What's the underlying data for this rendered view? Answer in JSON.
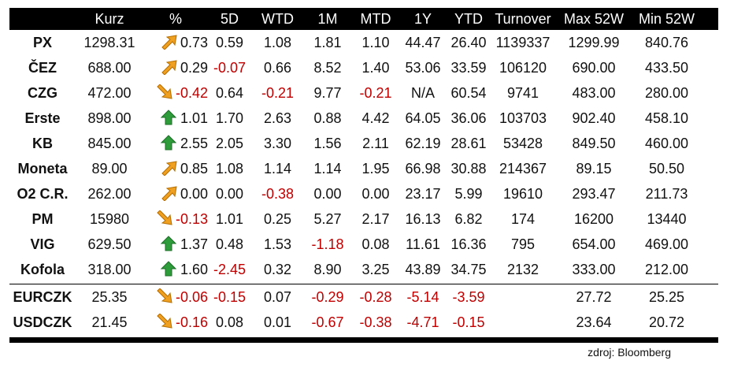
{
  "columns": [
    "",
    "Kurz",
    "%",
    "5D",
    "WTD",
    "1M",
    "MTD",
    "1Y",
    "YTD",
    "Turnover",
    "Max 52W",
    "Min 52W"
  ],
  "stocks": [
    {
      "name": "PX",
      "kurz": "1298.31",
      "pct": "0.73",
      "trend": "up-right",
      "d5": "0.59",
      "wtd": "1.08",
      "m1": "1.81",
      "mtd": "1.10",
      "y1": "44.47",
      "ytd": "26.40",
      "turnover": "1139337",
      "max52": "1299.99",
      "min52": "840.76"
    },
    {
      "name": "ČEZ",
      "kurz": "688.00",
      "pct": "0.29",
      "trend": "up-right",
      "d5": "-0.07",
      "wtd": "0.66",
      "m1": "8.52",
      "mtd": "1.40",
      "y1": "53.06",
      "ytd": "33.59",
      "turnover": "106120",
      "max52": "690.00",
      "min52": "433.50"
    },
    {
      "name": "CZG",
      "kurz": "472.00",
      "pct": "-0.42",
      "trend": "down-right",
      "d5": "0.64",
      "wtd": "-0.21",
      "m1": "9.77",
      "mtd": "-0.21",
      "y1": "N/A",
      "ytd": "60.54",
      "turnover": "9741",
      "max52": "483.00",
      "min52": "280.00"
    },
    {
      "name": "Erste",
      "kurz": "898.00",
      "pct": "1.01",
      "trend": "up",
      "d5": "1.70",
      "wtd": "2.63",
      "m1": "0.88",
      "mtd": "4.42",
      "y1": "64.05",
      "ytd": "36.06",
      "turnover": "103703",
      "max52": "902.40",
      "min52": "458.10"
    },
    {
      "name": "KB",
      "kurz": "845.00",
      "pct": "2.55",
      "trend": "up",
      "d5": "2.05",
      "wtd": "3.30",
      "m1": "1.56",
      "mtd": "2.11",
      "y1": "62.19",
      "ytd": "28.61",
      "turnover": "53428",
      "max52": "849.50",
      "min52": "460.00"
    },
    {
      "name": "Moneta",
      "kurz": "89.00",
      "pct": "0.85",
      "trend": "up-right",
      "d5": "1.08",
      "wtd": "1.14",
      "m1": "1.14",
      "mtd": "1.95",
      "y1": "66.98",
      "ytd": "30.88",
      "turnover": "214367",
      "max52": "89.15",
      "min52": "50.50"
    },
    {
      "name": "O2 C.R.",
      "kurz": "262.00",
      "pct": "0.00",
      "trend": "up-right",
      "d5": "0.00",
      "wtd": "-0.38",
      "m1": "0.00",
      "mtd": "0.00",
      "y1": "23.17",
      "ytd": "5.99",
      "turnover": "19610",
      "max52": "293.47",
      "min52": "211.73"
    },
    {
      "name": "PM",
      "kurz": "15980",
      "pct": "-0.13",
      "trend": "down-right",
      "d5": "1.01",
      "wtd": "0.25",
      "m1": "5.27",
      "mtd": "2.17",
      "y1": "16.13",
      "ytd": "6.82",
      "turnover": "174",
      "max52": "16200",
      "min52": "13440"
    },
    {
      "name": "VIG",
      "kurz": "629.50",
      "pct": "1.37",
      "trend": "up",
      "d5": "0.48",
      "wtd": "1.53",
      "m1": "-1.18",
      "mtd": "0.08",
      "y1": "11.61",
      "ytd": "16.36",
      "turnover": "795",
      "max52": "654.00",
      "min52": "469.00"
    },
    {
      "name": "Kofola",
      "kurz": "318.00",
      "pct": "1.60",
      "trend": "up",
      "d5": "-2.45",
      "wtd": "0.32",
      "m1": "8.90",
      "mtd": "3.25",
      "y1": "43.89",
      "ytd": "34.75",
      "turnover": "2132",
      "max52": "333.00",
      "min52": "212.00"
    }
  ],
  "fx": [
    {
      "name": "EURCZK",
      "kurz": "25.35",
      "pct": "-0.06",
      "trend": "down-right",
      "d5": "-0.15",
      "wtd": "0.07",
      "m1": "-0.29",
      "mtd": "-0.28",
      "y1": "-5.14",
      "ytd": "-3.59",
      "turnover": "",
      "max52": "27.72",
      "min52": "25.25"
    },
    {
      "name": "USDCZK",
      "kurz": "21.45",
      "pct": "-0.16",
      "trend": "down-right",
      "d5": "0.08",
      "wtd": "0.01",
      "m1": "-0.67",
      "mtd": "-0.38",
      "y1": "-4.71",
      "ytd": "-0.15",
      "turnover": "",
      "max52": "23.64",
      "min52": "20.72"
    }
  ],
  "source": "zdroj: Bloomberg",
  "colors": {
    "header_bg": "#000000",
    "negative": "#c00000",
    "arrow_green": "#2e9c3a",
    "arrow_orange": "#f0a020"
  }
}
